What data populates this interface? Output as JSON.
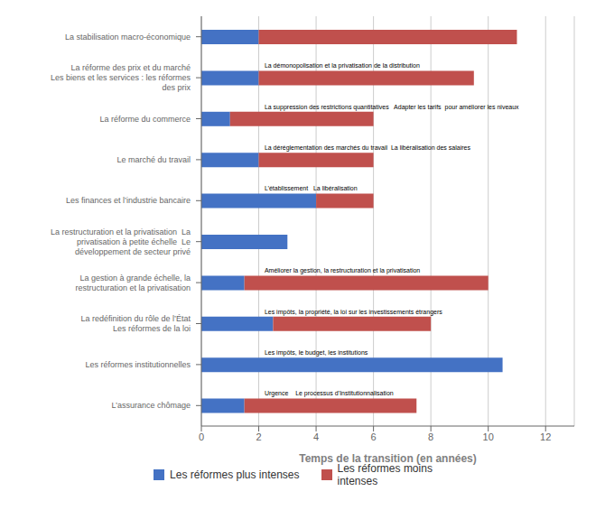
{
  "chart_data": {
    "type": "bar",
    "orientation": "horizontal",
    "stacked": true,
    "categories": [
      "La stabilisation macro-économique",
      "La réforme des prix et du marché\nLes biens et les services : les réformes\ndes prix",
      "La réforme du commerce",
      "Le marché du travail",
      "Les finances et l’industrie bancaire",
      "La restructuration et la privatisation  La\nprivatisation à petite échelle  Le\ndéveloppement de secteur privé",
      "La gestion à grande échelle, la\nrestructuration et la privatisation",
      "La redéfinition du rôle de l’État\nLes réformes de la loi",
      "Les réformes institutionnelles",
      "L’assurance chômage"
    ],
    "series": [
      {
        "name": "Les réformes plus intenses",
        "color": "#4472C4",
        "values": [
          2,
          2,
          1,
          2,
          4,
          3,
          1.5,
          2.5,
          10.5,
          1.5
        ]
      },
      {
        "name": "Les réformes moins\nintenses",
        "color": "#C0504D",
        "values": [
          9,
          7.5,
          5,
          4,
          2,
          0,
          8.5,
          5.5,
          0,
          6
        ]
      }
    ],
    "xlabel": "Temps de la transition (en années)",
    "xlim": [
      0,
      13
    ],
    "xticks": [
      0,
      2,
      4,
      6,
      8,
      10,
      12
    ],
    "grid": true,
    "legend": "bottom",
    "annotations": [
      {
        "text": "La démonopolisation et la privatisation de la distribution",
        "category": "La réforme des prix et du marché\nLes biens et les services : les réformes\ndes prix",
        "x": 2.2
      },
      {
        "text": "La suppression des restrictions quantitatives   Adapter les tarifs  pour améliorer les niveaux",
        "category": "La réforme du commerce",
        "x": 2.2
      },
      {
        "text": "La déréglementation des marchés du travail  La libéralisation des salaires",
        "category": "Le marché du travail",
        "x": 2.2
      },
      {
        "text": "L’établissement   La libéralisation",
        "category": "Les finances et l’industrie bancaire",
        "x": 2.2
      },
      {
        "text": "Améliorer la gestion, la restructuration et la privatisation",
        "category": "La gestion à grande échelle, la\nrestructuration et la privatisation",
        "x": 2.2
      },
      {
        "text": "Les impôts, la propriété, la loi sur les investissements étrangers",
        "category": "La redéfinition du rôle de l’État\nLes réformes de la loi",
        "x": 2.2
      },
      {
        "text": "Les impôts, le budget, les institutions",
        "category": "Les réformes institutionnelles",
        "x": 2.2
      },
      {
        "text": "Urgence    Le processus d’Institutionnalisation",
        "category": "L’assurance chômage",
        "x": 2.2
      }
    ]
  }
}
